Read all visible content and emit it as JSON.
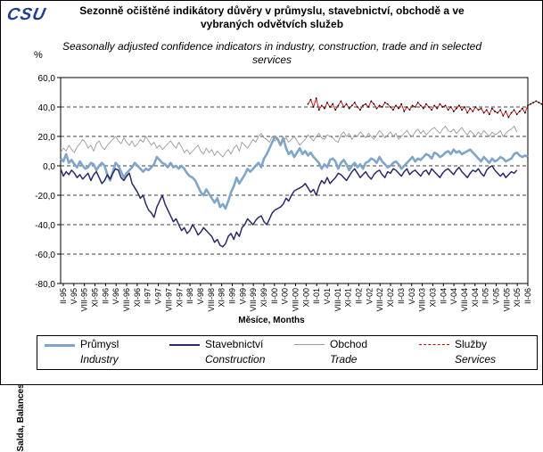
{
  "header": {
    "logo": "CSU",
    "title_cz": "Sezonně očištěné indikátory důvěry v průmyslu, stavebnictví, obchodě a ve vybraných odvětvích služeb",
    "title_en": "Seasonally adjusted confidence indicators in industry, construction, trade and in selected services",
    "unit": "%"
  },
  "chart_data": {
    "type": "line",
    "ylabel": "Salda, Balances",
    "xlabel": "Měsíce, Months",
    "ylim": [
      -80,
      60
    ],
    "yticks": [
      "60,0",
      "40,0",
      "20,0",
      "0,0",
      "-20,0",
      "-40,0",
      "-60,0",
      "-80,0"
    ],
    "ytick_values": [
      60,
      40,
      20,
      0,
      -20,
      -40,
      -60,
      -80
    ],
    "grid": "dashed horizontal at 0, 20, 40, 60 and -20, -40, -60",
    "legend_placement": "bottom",
    "x_tick_labels": [
      "II-95",
      "V-95",
      "VIII-95",
      "XI-95",
      "II-96",
      "V-96",
      "VIII-96",
      "XI-96",
      "II-97",
      "V-97",
      "VIII-97",
      "XI-97",
      "II-98",
      "V-98",
      "VIII-98",
      "XI-98",
      "II-99",
      "V-99",
      "VIII-99",
      "XI-99",
      "II-00",
      "V-00",
      "VIII-00",
      "XI-00",
      "II-01",
      "V-01",
      "VIII-01",
      "XI-01",
      "II-02",
      "V-02",
      "VIII-02",
      "XI-02",
      "II-03",
      "V-03",
      "VIII-03",
      "XI-03",
      "II-04",
      "V-04",
      "VIII-04",
      "XI-04",
      "II-05",
      "V-05",
      "VIII-05",
      "XI-05",
      "II-06"
    ],
    "x_start": "I-95",
    "x_end": "II-06",
    "series": [
      {
        "name": "Průmysl",
        "name_en": "Industry",
        "color": "#7fa5c8",
        "start_index": 0,
        "values": [
          5,
          3,
          8,
          2,
          4,
          1,
          -1,
          3,
          0,
          -2,
          -1,
          2,
          1,
          -3,
          0,
          2,
          0,
          -6,
          -10,
          -4,
          2,
          0,
          -4,
          -8,
          -5,
          -3,
          -1,
          2,
          0,
          -2,
          -4,
          -2,
          -3,
          -1,
          1,
          6,
          4,
          2,
          1,
          -1,
          2,
          -1,
          0,
          -2,
          0,
          -2,
          -5,
          -7,
          -8,
          -10,
          -14,
          -18,
          -20,
          -16,
          -19,
          -22,
          -25,
          -22,
          -28,
          -26,
          -29,
          -24,
          -18,
          -14,
          -8,
          -12,
          -9,
          -6,
          -2,
          -4,
          -2,
          0,
          2,
          -1,
          5,
          8,
          12,
          16,
          20,
          18,
          14,
          19,
          12,
          8,
          10,
          6,
          9,
          12,
          8,
          10,
          7,
          9,
          6,
          4,
          2,
          -2,
          1,
          -1,
          4,
          5,
          3,
          -2,
          2,
          4,
          1,
          -3,
          0,
          2,
          -1,
          1,
          -2,
          2,
          3,
          5,
          4,
          2,
          6,
          3,
          1,
          -1,
          0,
          2,
          3,
          1,
          -2,
          0,
          2,
          4,
          6,
          3,
          5,
          4,
          6,
          8,
          7,
          5,
          9,
          8,
          6,
          7,
          9,
          10,
          8,
          11,
          9,
          10,
          8,
          9,
          10,
          11,
          9,
          7,
          5,
          3,
          6,
          4,
          2,
          5,
          3,
          4,
          6,
          5,
          3,
          4,
          5,
          8,
          9,
          7,
          6,
          7,
          6
        ]
      },
      {
        "name": "Stavebnictví",
        "name_en": "Construction",
        "color": "#2b2b6b",
        "start_index": 0,
        "values": [
          -2,
          -7,
          -4,
          -6,
          -3,
          -5,
          -8,
          -6,
          -9,
          -7,
          -5,
          -10,
          -6,
          -4,
          -8,
          -12,
          -10,
          -6,
          -9,
          -5,
          -2,
          -3,
          -8,
          -10,
          -7,
          -5,
          -12,
          -15,
          -18,
          -22,
          -20,
          -26,
          -30,
          -32,
          -35,
          -28,
          -24,
          -20,
          -26,
          -30,
          -34,
          -38,
          -36,
          -40,
          -44,
          -42,
          -46,
          -44,
          -40,
          -43,
          -47,
          -45,
          -42,
          -44,
          -46,
          -48,
          -52,
          -50,
          -54,
          -55,
          -53,
          -48,
          -46,
          -50,
          -45,
          -48,
          -42,
          -40,
          -36,
          -38,
          -40,
          -37,
          -35,
          -34,
          -38,
          -40,
          -36,
          -32,
          -30,
          -29,
          -28,
          -26,
          -22,
          -24,
          -20,
          -17,
          -16,
          -15,
          -14,
          -12,
          -15,
          -18,
          -16,
          -20,
          -14,
          -10,
          -12,
          -8,
          -12,
          -10,
          -8,
          -5,
          -6,
          -8,
          -10,
          -7,
          -4,
          -2,
          -5,
          -8,
          -6,
          -4,
          -7,
          -9,
          -6,
          -4,
          -3,
          -6,
          -8,
          -4,
          -5,
          -2,
          -3,
          -5,
          -7,
          -4,
          -2,
          -6,
          -4,
          -3,
          -5,
          -7,
          -4,
          -3,
          -6,
          -2,
          -4,
          -6,
          -8,
          -5,
          -3,
          -2,
          -4,
          -6,
          -3,
          -1,
          -4,
          -6,
          -8,
          -5,
          -3,
          -4,
          -2,
          -5,
          -7,
          -3,
          -1,
          0,
          -3,
          -5,
          -7,
          -5,
          -8,
          -6,
          -4,
          -5,
          -3
        ]
      },
      {
        "name": "Obchod",
        "name_en": "Trade",
        "color": "#9a9a9a",
        "start_index": 0,
        "values": [
          9,
          12,
          10,
          14,
          11,
          9,
          13,
          15,
          18,
          16,
          12,
          14,
          10,
          15,
          17,
          13,
          11,
          14,
          16,
          18,
          20,
          17,
          15,
          19,
          16,
          14,
          17,
          13,
          15,
          18,
          16,
          20,
          17,
          14,
          16,
          12,
          14,
          11,
          13,
          15,
          17,
          14,
          12,
          16,
          13,
          9,
          11,
          8,
          10,
          12,
          14,
          10,
          8,
          12,
          9,
          11,
          7,
          10,
          8,
          6,
          9,
          11,
          8,
          12,
          14,
          10,
          16,
          14,
          12,
          15,
          18,
          16,
          20,
          22,
          19,
          18,
          16,
          20,
          17,
          19,
          15,
          17,
          19,
          16,
          18,
          20,
          17,
          14,
          16,
          18,
          21,
          19,
          17,
          20,
          22,
          19,
          18,
          21,
          20,
          19,
          17,
          16,
          21,
          23,
          20,
          22,
          18,
          21,
          20,
          23,
          21,
          19,
          22,
          20,
          18,
          21,
          24,
          22,
          19,
          21,
          23,
          20,
          22,
          18,
          20,
          22,
          24,
          21,
          20,
          23,
          25,
          22,
          24,
          21,
          23,
          25,
          26,
          24,
          22,
          25,
          27,
          24,
          23,
          25,
          22,
          24,
          26,
          23,
          21,
          24,
          22,
          20,
          23,
          21,
          24,
          22,
          20,
          23,
          21,
          22,
          24,
          20,
          22,
          24,
          25,
          27,
          23
        ]
      },
      {
        "name": "Služby",
        "name_en": "Services",
        "color": "#c00000",
        "start_index": 90,
        "values": [
          42,
          45,
          40,
          46,
          38,
          41,
          39,
          43,
          40,
          42,
          38,
          41,
          44,
          40,
          42,
          39,
          41,
          43,
          40,
          38,
          41,
          42,
          40,
          44,
          42,
          39,
          41,
          40,
          43,
          42,
          40,
          38,
          41,
          39,
          42,
          37,
          40,
          38,
          41,
          40,
          43,
          41,
          39,
          42,
          40,
          38,
          41,
          39,
          42,
          40,
          41,
          38,
          40,
          37,
          39,
          41,
          38,
          40,
          36,
          39,
          37,
          40,
          38,
          39,
          36,
          38,
          35,
          39,
          37,
          36,
          38,
          34,
          37,
          33,
          36,
          38,
          35,
          37,
          39,
          36,
          41,
          42,
          43,
          44,
          43,
          42,
          44
        ]
      }
    ]
  }
}
